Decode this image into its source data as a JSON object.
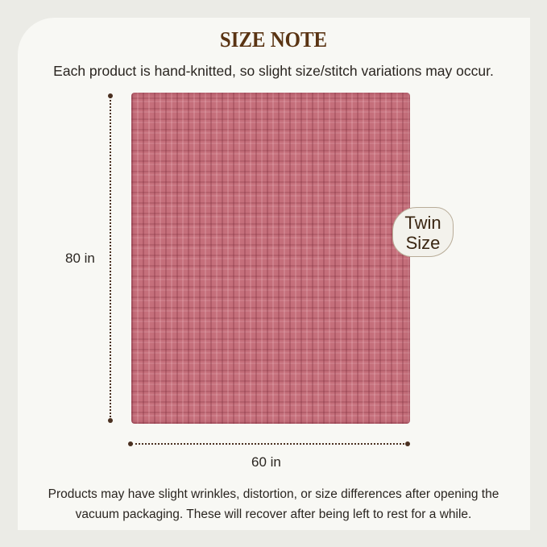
{
  "title": "SIZE NOTE",
  "subtitle": "Each product is hand-knitted, so slight size/stitch variations may occur.",
  "dimensions": {
    "height": "80 in",
    "width": "60 in"
  },
  "badge": {
    "line1": "Twin",
    "line2": "Size"
  },
  "footer": {
    "line1": "Products may have slight wrinkles, distortion, or size differences after opening the",
    "line2": "vacuum packaging. These will recover after being left to rest for a while."
  },
  "colors": {
    "title": "#5a3413",
    "blanket": "#c56f7b",
    "background": "#ebebe6"
  }
}
